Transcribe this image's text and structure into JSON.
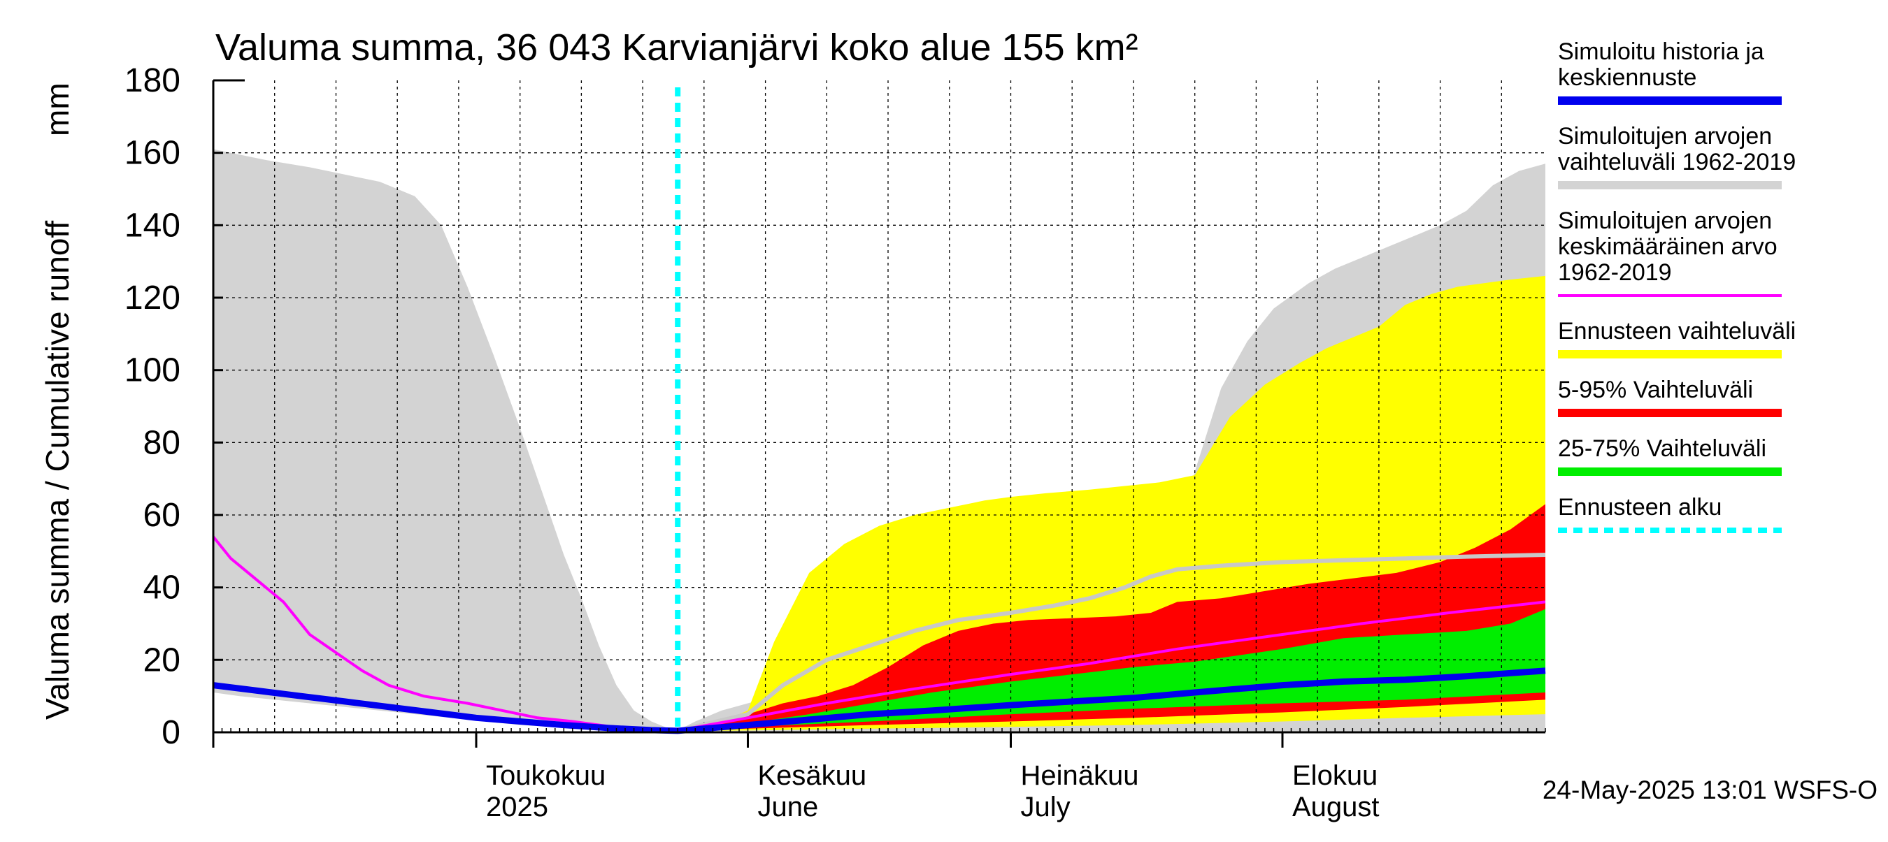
{
  "chart_data": {
    "type": "area",
    "title": "Valuma summa, 36 043 Karvianjärvi koko alue 155 km²",
    "ylabel": "Valuma summa / Cumulative runoff",
    "yunit": "mm",
    "ylim": [
      0,
      180
    ],
    "yticks": [
      0,
      20,
      40,
      60,
      80,
      100,
      120,
      140,
      160,
      180
    ],
    "xlim": [
      "2025-04-01",
      "2025-08-31"
    ],
    "grid": true,
    "legend_position": "right",
    "month_labels": [
      {
        "date": "2025-05-01",
        "line1": "Toukokuu",
        "line2": "2025"
      },
      {
        "date": "2025-06-01",
        "line1": "Kesäkuu",
        "line2": "June"
      },
      {
        "date": "2025-07-01",
        "line1": "Heinäkuu",
        "line2": "July"
      },
      {
        "date": "2025-08-01",
        "line1": "Elokuu",
        "line2": "August"
      }
    ],
    "forecast_start": "2025-05-24",
    "footer": "24-May-2025 13:01 WSFS-O",
    "colors": {
      "history": "#0000ee",
      "range": "#d3d3d3",
      "mean": "#ff00ff",
      "forecast_range": "#ffff00",
      "p5_95": "#ff0000",
      "p25_75": "#00ee00",
      "forecast_start": "#00ffff",
      "median": "#c8c8c8"
    },
    "legend": [
      {
        "key": "history",
        "text": [
          "Simuloitu historia ja",
          "keskiennuste"
        ],
        "style": "line"
      },
      {
        "key": "range",
        "text": [
          "Simuloitujen arvojen",
          "vaihteluväli 1962-2019"
        ],
        "style": "line"
      },
      {
        "key": "mean",
        "text": [
          "Simuloitujen arvojen",
          "keskimääräinen arvo",
          "   1962-2019"
        ],
        "style": "thin"
      },
      {
        "key": "forecast_range",
        "text": [
          "Ennusteen vaihteluväli"
        ],
        "style": "line"
      },
      {
        "key": "p5_95",
        "text": [
          "5-95% Vaihteluväli"
        ],
        "style": "line"
      },
      {
        "key": "p25_75",
        "text": [
          "25-75% Vaihteluväli"
        ],
        "style": "line"
      },
      {
        "key": "forecast_start",
        "text": [
          "Ennusteen alku"
        ],
        "style": "dash"
      }
    ],
    "series": {
      "range_upper": {
        "x": [
          "2025-04-01",
          "2025-04-03",
          "2025-04-07",
          "2025-04-12",
          "2025-04-16",
          "2025-04-20",
          "2025-04-24",
          "2025-04-27",
          "2025-04-30",
          "2025-05-03",
          "2025-05-06",
          "2025-05-09",
          "2025-05-11",
          "2025-05-13",
          "2025-05-15",
          "2025-05-17",
          "2025-05-19",
          "2025-05-21",
          "2025-05-23",
          "2025-05-24",
          "2025-05-26",
          "2025-05-29",
          "2025-06-01",
          "2025-06-04",
          "2025-06-08",
          "2025-06-12",
          "2025-06-16",
          "2025-06-20",
          "2025-06-24",
          "2025-06-28",
          "2025-07-02",
          "2025-07-06",
          "2025-07-10",
          "2025-07-14",
          "2025-07-17",
          "2025-07-19",
          "2025-07-22",
          "2025-07-25",
          "2025-07-28",
          "2025-07-31",
          "2025-08-04",
          "2025-08-07",
          "2025-08-10",
          "2025-08-13",
          "2025-08-16",
          "2025-08-19",
          "2025-08-22",
          "2025-08-25",
          "2025-08-28",
          "2025-08-31"
        ],
        "y": [
          161,
          160,
          158,
          156,
          154,
          152,
          148,
          140,
          123,
          104,
          84,
          63,
          49,
          37,
          24,
          13,
          6,
          3,
          1,
          0.5,
          3,
          6,
          8,
          10,
          12,
          16,
          18,
          20,
          22,
          24,
          27,
          30,
          32,
          35,
          38,
          42,
          72,
          95,
          108,
          117,
          124,
          128,
          131,
          134,
          137,
          140,
          144,
          151,
          155,
          157
        ]
      },
      "range_lower": {
        "x": [
          "2025-04-01",
          "2025-04-04",
          "2025-04-08",
          "2025-04-12",
          "2025-04-16",
          "2025-04-20",
          "2025-04-24",
          "2025-04-28",
          "2025-05-02",
          "2025-05-06",
          "2025-05-10",
          "2025-05-14",
          "2025-05-18",
          "2025-05-22",
          "2025-05-24",
          "2025-06-01",
          "2025-07-01",
          "2025-08-01",
          "2025-08-31"
        ],
        "y": [
          11,
          10,
          9,
          8,
          7,
          6,
          5,
          4,
          3,
          2,
          1.5,
          1,
          0.7,
          0.4,
          0.3,
          0.3,
          0.3,
          0.3,
          0.3
        ]
      },
      "forecast_upper": {
        "x": [
          "2025-05-24",
          "2025-05-28",
          "2025-06-01",
          "2025-06-04",
          "2025-06-08",
          "2025-06-12",
          "2025-06-16",
          "2025-06-20",
          "2025-06-24",
          "2025-06-28",
          "2025-07-01",
          "2025-07-05",
          "2025-07-10",
          "2025-07-14",
          "2025-07-18",
          "2025-07-22",
          "2025-07-26",
          "2025-07-30",
          "2025-08-03",
          "2025-08-06",
          "2025-08-09",
          "2025-08-12",
          "2025-08-15",
          "2025-08-18",
          "2025-08-21",
          "2025-08-24",
          "2025-08-27",
          "2025-08-31"
        ],
        "y": [
          0.5,
          2,
          6,
          25,
          44,
          52,
          57,
          60,
          62,
          64,
          65,
          66,
          67,
          68,
          69,
          71,
          87,
          96,
          102,
          106,
          109,
          112,
          118,
          121,
          123,
          124,
          125,
          126
        ]
      },
      "forecast_lower": {
        "x": [
          "2025-05-24",
          "2025-06-01",
          "2025-06-15",
          "2025-07-01",
          "2025-07-15",
          "2025-08-01",
          "2025-08-15",
          "2025-08-31"
        ],
        "y": [
          0.3,
          0.5,
          1,
          1.5,
          2,
          3,
          4,
          5
        ]
      },
      "p95": {
        "x": [
          "2025-05-24",
          "2025-05-28",
          "2025-06-01",
          "2025-06-05",
          "2025-06-09",
          "2025-06-13",
          "2025-06-17",
          "2025-06-21",
          "2025-06-25",
          "2025-06-29",
          "2025-07-03",
          "2025-07-08",
          "2025-07-13",
          "2025-07-17",
          "2025-07-20",
          "2025-07-25",
          "2025-07-30",
          "2025-08-04",
          "2025-08-09",
          "2025-08-14",
          "2025-08-19",
          "2025-08-23",
          "2025-08-27",
          "2025-08-31"
        ],
        "y": [
          0.5,
          1.5,
          5,
          8,
          10,
          13,
          18,
          24,
          28,
          30,
          31,
          31.5,
          32,
          33,
          36,
          37,
          39,
          41,
          42.5,
          44,
          47,
          51,
          56,
          63
        ]
      },
      "p5": {
        "x": [
          "2025-05-24",
          "2025-06-01",
          "2025-06-15",
          "2025-07-01",
          "2025-07-15",
          "2025-08-01",
          "2025-08-15",
          "2025-08-31"
        ],
        "y": [
          0.4,
          1,
          2,
          3,
          4,
          5.5,
          7,
          9
        ]
      },
      "p75": {
        "x": [
          "2025-05-24",
          "2025-06-01",
          "2025-06-08",
          "2025-06-15",
          "2025-06-22",
          "2025-07-01",
          "2025-07-08",
          "2025-07-15",
          "2025-07-22",
          "2025-08-01",
          "2025-08-08",
          "2025-08-15",
          "2025-08-22",
          "2025-08-27",
          "2025-08-31"
        ],
        "y": [
          0.5,
          2.5,
          5,
          8,
          11,
          14,
          16,
          18,
          19.5,
          23,
          26,
          27,
          28,
          30,
          34
        ]
      },
      "p25": {
        "x": [
          "2025-05-24",
          "2025-06-01",
          "2025-06-15",
          "2025-07-01",
          "2025-07-15",
          "2025-08-01",
          "2025-08-15",
          "2025-08-31"
        ],
        "y": [
          0.4,
          1.5,
          3,
          5,
          6.5,
          8,
          9,
          11
        ]
      },
      "history_median": {
        "x": [
          "2025-04-01",
          "2025-04-06",
          "2025-04-11",
          "2025-04-16",
          "2025-04-21",
          "2025-04-26",
          "2025-05-01",
          "2025-05-06",
          "2025-05-11",
          "2025-05-16",
          "2025-05-21",
          "2025-05-24",
          "2025-06-01",
          "2025-06-08",
          "2025-06-15",
          "2025-06-22",
          "2025-07-01",
          "2025-07-08",
          "2025-07-15",
          "2025-07-22",
          "2025-08-01",
          "2025-08-08",
          "2025-08-15",
          "2025-08-22",
          "2025-08-31"
        ],
        "y": [
          13,
          11.5,
          10,
          8.5,
          7,
          5.5,
          4,
          3,
          2,
          1.2,
          0.6,
          0.4,
          2,
          3.5,
          5,
          6,
          7.5,
          8.5,
          9.5,
          11,
          13,
          14,
          14.5,
          15.5,
          17
        ]
      },
      "simulated_median": {
        "x": [
          "2025-05-24",
          "2025-06-01",
          "2025-06-05",
          "2025-06-10",
          "2025-06-15",
          "2025-06-20",
          "2025-06-25",
          "2025-07-01",
          "2025-07-06",
          "2025-07-10",
          "2025-07-14",
          "2025-07-17",
          "2025-07-20",
          "2025-07-25",
          "2025-08-01",
          "2025-08-08",
          "2025-08-15",
          "2025-08-22",
          "2025-08-31"
        ],
        "y": [
          0.5,
          5,
          13,
          20,
          24,
          28,
          31,
          33,
          35,
          37,
          40,
          43,
          45,
          46,
          47,
          47.5,
          48,
          48.5,
          49
        ]
      },
      "mean": {
        "x": [
          "2025-04-01",
          "2025-04-03",
          "2025-04-06",
          "2025-04-09",
          "2025-04-12",
          "2025-04-15",
          "2025-04-18",
          "2025-04-21",
          "2025-04-25",
          "2025-04-30",
          "2025-05-04",
          "2025-05-08",
          "2025-05-12",
          "2025-05-16",
          "2025-05-20",
          "2025-05-24",
          "2025-06-01",
          "2025-06-10",
          "2025-06-20",
          "2025-07-01",
          "2025-07-10",
          "2025-07-20",
          "2025-08-01",
          "2025-08-10",
          "2025-08-20",
          "2025-08-31"
        ],
        "y": [
          54,
          48,
          42,
          36,
          27,
          22,
          17,
          13,
          10,
          8,
          6,
          4,
          3,
          1.7,
          1,
          0.5,
          4,
          8,
          12,
          16,
          19,
          23,
          27,
          30,
          33,
          36
        ]
      }
    }
  }
}
